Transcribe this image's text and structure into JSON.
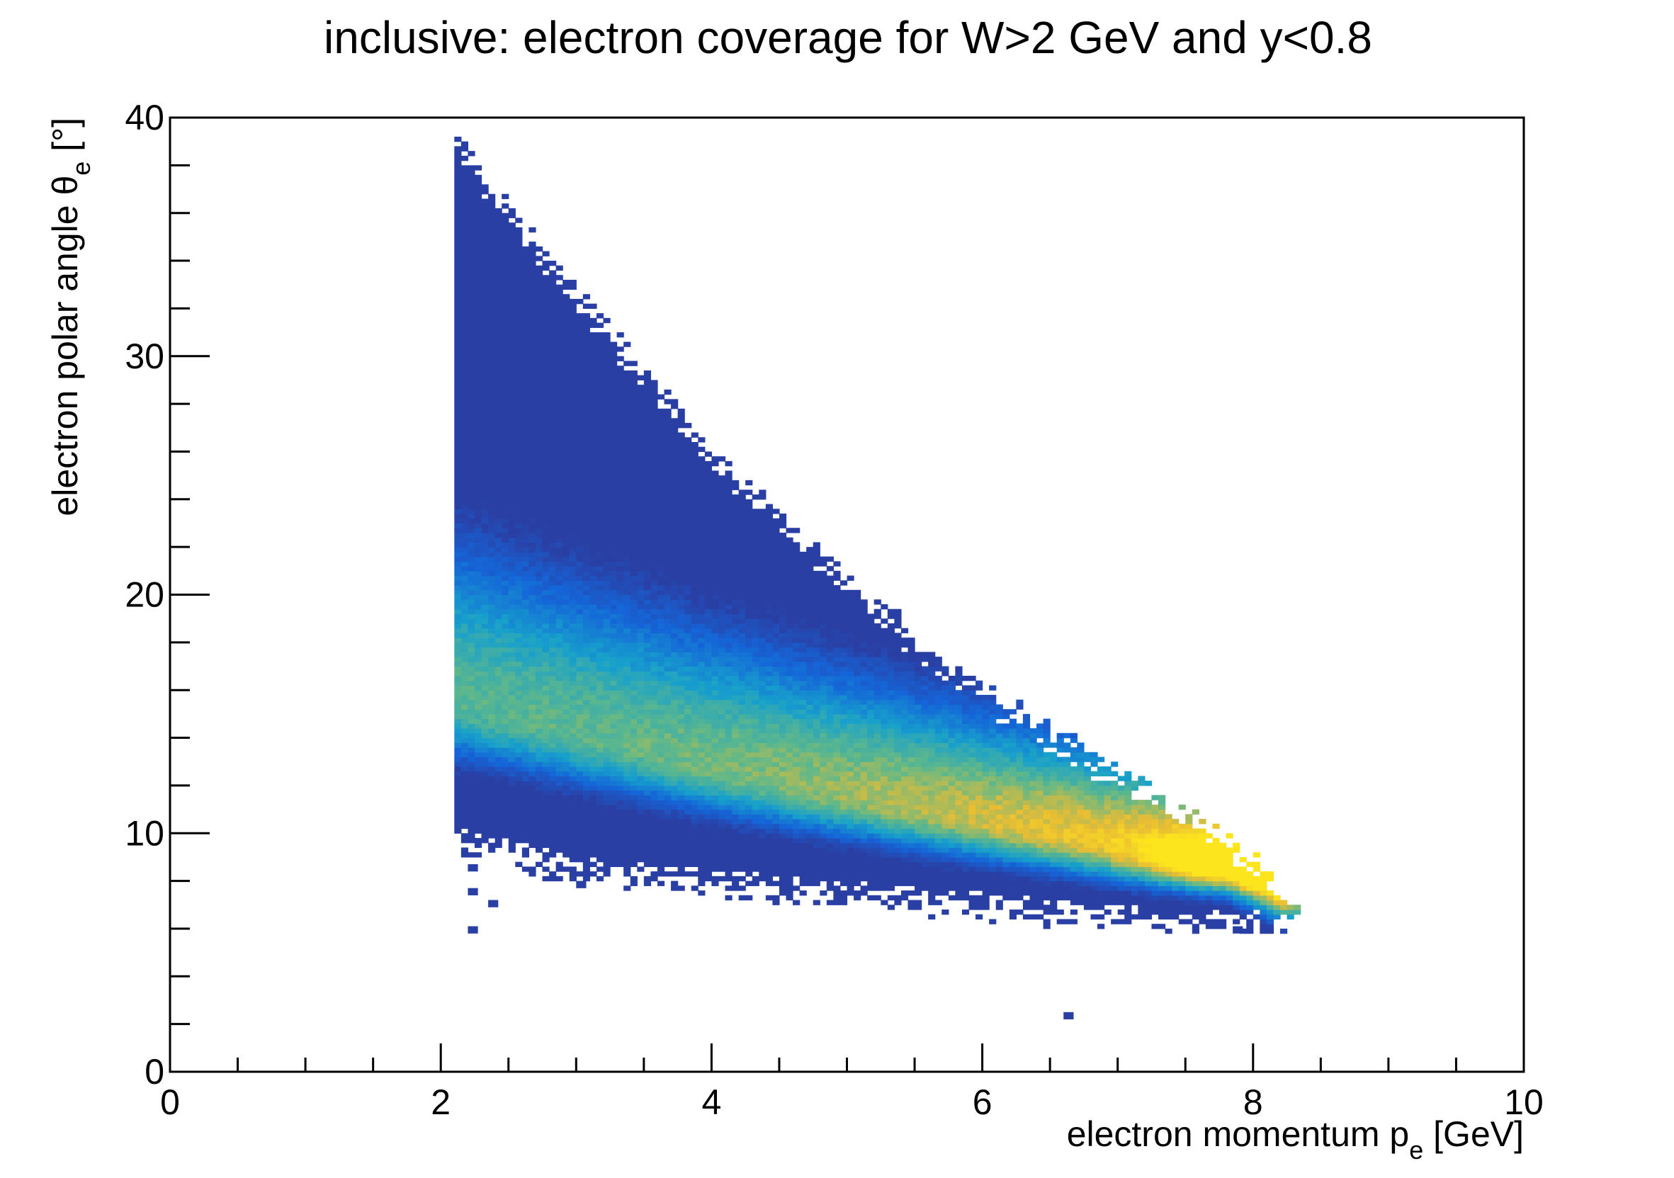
{
  "chart_data": {
    "type": "heatmap",
    "title": "inclusive: electron coverage for W>2 GeV and y<0.8",
    "xlabel": {
      "main": "electron momentum p",
      "sub": "e",
      "unit": " [GeV]"
    },
    "ylabel": {
      "main": "electron polar angle θ",
      "sub": "e",
      "unit": " [°]"
    },
    "xlim": [
      0,
      10
    ],
    "ylim": [
      0,
      40
    ],
    "x_major_ticks": [
      0,
      2,
      4,
      6,
      8,
      10
    ],
    "x_tick_labels": [
      "0",
      "2",
      "4",
      "6",
      "8",
      "10"
    ],
    "y_major_ticks": [
      0,
      10,
      20,
      30,
      40
    ],
    "y_tick_labels": [
      "0",
      "10",
      "20",
      "30",
      "40"
    ],
    "grid": false,
    "legend": "none",
    "colors": {
      "low": "#2a3fa4",
      "mid_low": "#1565d8",
      "mid": "#17a0cc",
      "mid_high": "#5fb88a",
      "high": "#e9bd33",
      "max": "#fde51d"
    },
    "coverage": {
      "p_min": 2.1,
      "p_max": 8.3,
      "upper_edge_theta_at_p": [
        [
          2.1,
          39.5
        ],
        [
          2.8,
          34.5
        ],
        [
          4.0,
          26.5
        ],
        [
          5.0,
          21.0
        ],
        [
          6.0,
          16.5
        ],
        [
          7.0,
          13.0
        ],
        [
          8.0,
          9.5
        ],
        [
          8.3,
          7.2
        ]
      ],
      "lower_edge_theta_at_p": [
        [
          2.1,
          10.2
        ],
        [
          3.0,
          9.0
        ],
        [
          4.0,
          8.5
        ],
        [
          5.0,
          8.0
        ],
        [
          6.0,
          7.5
        ],
        [
          7.0,
          7.0
        ],
        [
          8.0,
          6.7
        ],
        [
          8.3,
          6.8
        ]
      ],
      "ridge_theta_at_p": [
        [
          2.1,
          15.5
        ],
        [
          3.0,
          14.2
        ],
        [
          4.0,
          12.8
        ],
        [
          5.0,
          11.6
        ],
        [
          6.0,
          10.5
        ],
        [
          7.0,
          9.5
        ],
        [
          7.8,
          8.8
        ],
        [
          8.2,
          7.6
        ]
      ],
      "peak_region": {
        "p": 7.7,
        "theta": 8.7
      },
      "outliers": [
        [
          2.2,
          8.5
        ],
        [
          2.2,
          7.5
        ],
        [
          2.2,
          5.9
        ],
        [
          2.35,
          7.0
        ],
        [
          3.0,
          7.8
        ],
        [
          6.6,
          2.3
        ],
        [
          7.85,
          5.9
        ]
      ]
    }
  }
}
